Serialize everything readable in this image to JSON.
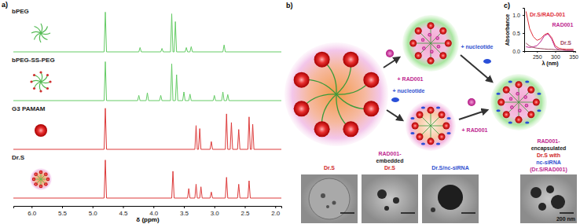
{
  "chart_data": [
    {
      "type": "line",
      "x_label": "δ (ppm)",
      "annotations": [
        "a)"
      ],
      "xlim": [
        6.3,
        1.9
      ],
      "xticks": [
        {
          "value": 6,
          "label": "6.0"
        },
        {
          "value": 5.5,
          "label": "5.5"
        },
        {
          "value": 5,
          "label": "5.0"
        },
        {
          "value": 4.5,
          "label": "4.5"
        },
        {
          "value": 4,
          "label": "4.0"
        },
        {
          "value": 3.5,
          "label": "3.5"
        },
        {
          "value": 3,
          "label": "3.0"
        },
        {
          "value": 2.5,
          "label": "2.5"
        },
        {
          "value": 2,
          "label": "2.0"
        }
      ],
      "ylim": [
        0,
        100
      ],
      "tick_labels": "x",
      "series": [
        {
          "name": "bPEG",
          "color": "#66cc66",
          "x": [
            6.3,
            4.81,
            4.79,
            4.77,
            4.24,
            4.22,
            4.2,
            3.88,
            3.86,
            3.84,
            3.72,
            3.7,
            3.68,
            3.66,
            3.64,
            3.62,
            3.48,
            3.46,
            3.44,
            3.4,
            3.38,
            3.36,
            2.86,
            2.84,
            2.82,
            1.9
          ],
          "values": [
            0,
            0,
            92,
            0,
            0,
            10,
            0,
            0,
            8,
            0,
            0,
            88,
            0,
            0,
            70,
            0,
            0,
            10,
            0,
            0,
            12,
            0,
            0,
            16,
            0,
            0
          ]
        },
        {
          "name": "bPEG-SS-PEG",
          "color": "#66cc66",
          "x": [
            6.3,
            4.81,
            4.79,
            4.77,
            4.26,
            4.24,
            4.22,
            4.12,
            4.1,
            4.08,
            3.9,
            3.88,
            3.86,
            3.72,
            3.7,
            3.68,
            3.64,
            3.62,
            3.6,
            3.52,
            3.5,
            3.48,
            3.42,
            3.4,
            3.38,
            3.02,
            3,
            2.98,
            2.88,
            2.86,
            2.84,
            2.8,
            2.78,
            2.76,
            1.9
          ],
          "values": [
            0,
            0,
            90,
            0,
            0,
            12,
            0,
            0,
            18,
            0,
            0,
            12,
            0,
            0,
            85,
            0,
            0,
            60,
            0,
            0,
            20,
            0,
            0,
            15,
            0,
            0,
            12,
            0,
            0,
            20,
            0,
            0,
            14,
            0,
            0
          ]
        },
        {
          "name": "G3 PAMAM",
          "color": "#dd3b3b",
          "x": [
            6.3,
            4.81,
            4.79,
            4.77,
            3.32,
            3.3,
            3.28,
            3.26,
            3.24,
            3.22,
            3.07,
            3.05,
            3.03,
            2.82,
            2.8,
            2.78,
            2.74,
            2.72,
            2.7,
            2.62,
            2.6,
            2.58,
            2.45,
            2.43,
            2.41,
            2.39,
            2.37,
            2.35,
            1.9
          ],
          "values": [
            0,
            0,
            95,
            0,
            0,
            55,
            0,
            0,
            48,
            0,
            0,
            18,
            0,
            0,
            82,
            0,
            0,
            62,
            0,
            0,
            46,
            0,
            0,
            75,
            0,
            0,
            58,
            0,
            0
          ]
        },
        {
          "name": "Dr.S",
          "color": "#dd3b3b",
          "x": [
            6.3,
            4.81,
            4.79,
            4.77,
            3.7,
            3.68,
            3.66,
            3.44,
            3.42,
            3.4,
            3.32,
            3.3,
            3.28,
            3.24,
            3.22,
            3.2,
            3.07,
            3.05,
            3.03,
            2.82,
            2.8,
            2.78,
            2.62,
            2.6,
            2.58,
            2.45,
            2.43,
            2.41,
            1.9
          ],
          "values": [
            0,
            0,
            88,
            0,
            0,
            62,
            0,
            0,
            22,
            0,
            0,
            32,
            0,
            0,
            26,
            0,
            0,
            14,
            0,
            0,
            48,
            0,
            0,
            32,
            0,
            0,
            40,
            0,
            0
          ]
        }
      ]
    },
    {
      "type": "line",
      "x_label": "λ (nm)",
      "y_label": "Absorbance",
      "annotations": [
        "c)"
      ],
      "xlim": [
        215,
        355
      ],
      "xticks": [
        250,
        300,
        350
      ],
      "ylim": [
        0,
        1.2
      ],
      "yticks": [
        {
          "value": 0,
          "label": "0.0"
        },
        {
          "value": 0.5,
          "label": "0.5"
        },
        {
          "value": 1,
          "label": "1.0"
        }
      ],
      "series": [
        {
          "name": "Dr.S/RAD-001",
          "color": "#e0303a",
          "x": [
            220,
            230,
            240,
            250,
            260,
            270,
            280,
            290,
            300,
            310,
            320,
            330,
            340,
            350
          ],
          "values": [
            1.1,
            0.62,
            0.4,
            0.3,
            0.34,
            0.45,
            0.5,
            0.38,
            0.15,
            0.08,
            0.06,
            0.05,
            0.05,
            0.05
          ]
        },
        {
          "name": "RAD001",
          "color": "#c02890",
          "x": [
            220,
            230,
            240,
            250,
            260,
            270,
            280,
            290,
            300,
            310,
            320,
            330,
            340,
            350
          ],
          "values": [
            0.12,
            0.1,
            0.12,
            0.15,
            0.26,
            0.42,
            0.48,
            0.34,
            0.1,
            0.04,
            0.03,
            0.02,
            0.02,
            0.02
          ]
        },
        {
          "name": "Dr.S",
          "color": "#a04860",
          "x": [
            220,
            230,
            240,
            250,
            260,
            270,
            280,
            290,
            300,
            310,
            320,
            330,
            340,
            350
          ],
          "values": [
            0.22,
            0.14,
            0.1,
            0.08,
            0.07,
            0.06,
            0.05,
            0.05,
            0.04,
            0.03,
            0.03,
            0.02,
            0.02,
            0.02
          ]
        }
      ]
    }
  ],
  "diagram": {
    "panel_label": "b)",
    "arrow_labels": [
      "+ RAD001",
      "+ nucleotide",
      "+ nucleotide",
      "+ RAD001"
    ],
    "product_label": [
      "RAD001-",
      "encapsulated",
      "Dr.S with",
      "nc-siRNA",
      "(Dr.S/RAD001)"
    ],
    "tem_labels": [
      [
        "Dr.S"
      ],
      [
        "RAD001-",
        "embedded",
        "Dr.S"
      ],
      [
        "Dr.S/nc-siRNA"
      ]
    ],
    "scale_bar": "200 nm"
  }
}
